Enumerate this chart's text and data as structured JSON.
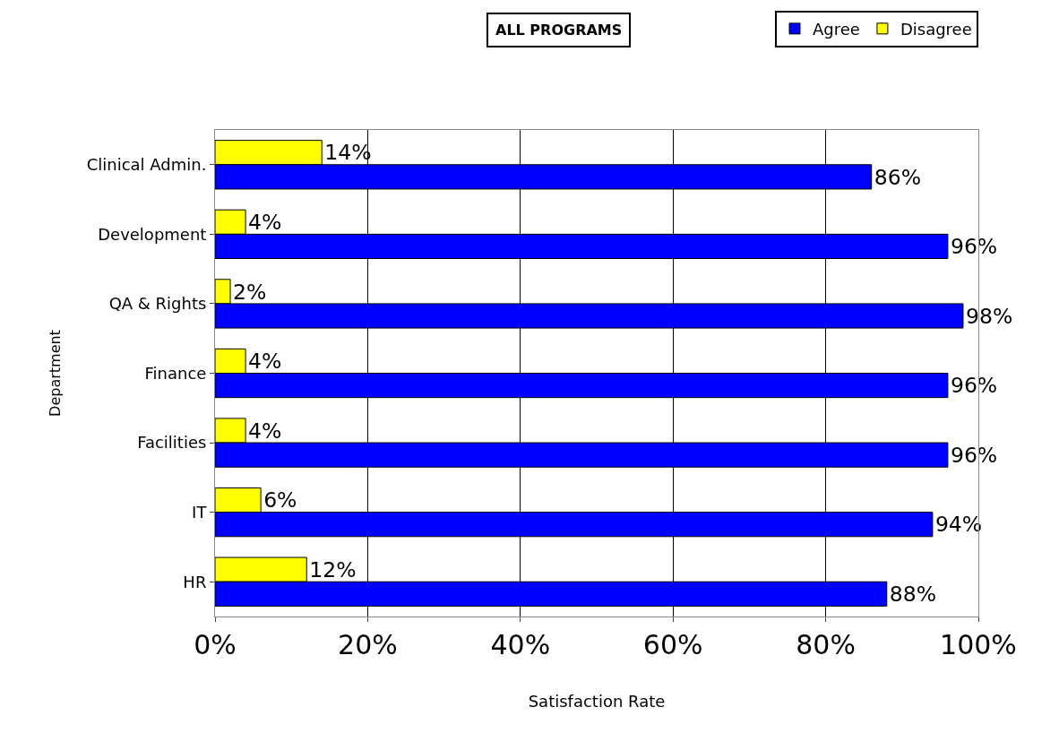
{
  "chart_data": {
    "type": "bar",
    "orientation": "horizontal",
    "title": "ALL PROGRAMS",
    "xlabel": "Satisfaction Rate",
    "ylabel": "Department",
    "categories": [
      "Clinical Admin.",
      "Development",
      "QA & Rights",
      "Finance",
      "Facilities",
      "IT",
      "HR"
    ],
    "series": [
      {
        "name": "Agree",
        "color": "#0000ff",
        "values": [
          86,
          96,
          98,
          96,
          96,
          94,
          88
        ],
        "value_labels": [
          "86%",
          "96%",
          "98%",
          "96%",
          "96%",
          "94%",
          "88%"
        ]
      },
      {
        "name": "Disagree",
        "color": "#ffff00",
        "values": [
          14,
          4,
          2,
          4,
          4,
          6,
          12
        ],
        "value_labels": [
          "14%",
          "4%",
          "2%",
          "4%",
          "4%",
          "6%",
          "12%"
        ]
      }
    ],
    "xlim": [
      0,
      100
    ],
    "xticks": [
      {
        "value": 0,
        "label": "0%"
      },
      {
        "value": 20,
        "label": "20%"
      },
      {
        "value": 40,
        "label": "40%"
      },
      {
        "value": 60,
        "label": "60%"
      },
      {
        "value": 80,
        "label": "80%"
      },
      {
        "value": 100,
        "label": "100%"
      }
    ],
    "grid": "x",
    "legend": "top right"
  }
}
